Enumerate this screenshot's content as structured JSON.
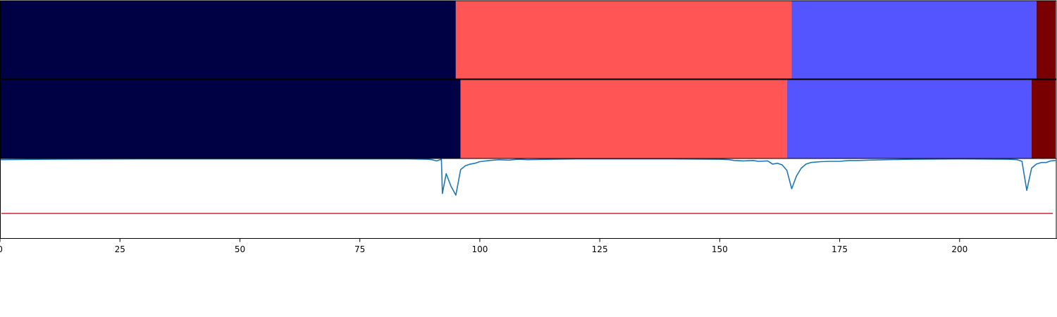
{
  "chart_data": [
    {
      "type": "bar",
      "orientation": "horizontal-segments",
      "panel": "top",
      "segments": [
        {
          "start": 0,
          "end": 95,
          "color": "#000045"
        },
        {
          "start": 95,
          "end": 165,
          "color": "#ff5555"
        },
        {
          "start": 165,
          "end": 216,
          "color": "#5555ff"
        },
        {
          "start": 216,
          "end": 220,
          "color": "#780000"
        }
      ]
    },
    {
      "type": "bar",
      "orientation": "horizontal-segments",
      "panel": "middle",
      "segments": [
        {
          "start": 0,
          "end": 96,
          "color": "#000045"
        },
        {
          "start": 96,
          "end": 164,
          "color": "#ff5555"
        },
        {
          "start": 164,
          "end": 215,
          "color": "#5555ff"
        },
        {
          "start": 215,
          "end": 220,
          "color": "#780000"
        }
      ]
    },
    {
      "type": "line",
      "panel": "bottom",
      "xlim": [
        0,
        220
      ],
      "ylim": [
        0,
        1
      ],
      "x_ticks": [
        0,
        25,
        50,
        75,
        100,
        125,
        150,
        175,
        200
      ],
      "threshold": {
        "value": 0.31,
        "color": "#d62728"
      },
      "series": [
        {
          "color": "#1f77b4",
          "points": [
            [
              0,
              0.985
            ],
            [
              10,
              0.99
            ],
            [
              30,
              0.995
            ],
            [
              60,
              0.995
            ],
            [
              85,
              0.995
            ],
            [
              89,
              0.99
            ],
            [
              90,
              0.985
            ],
            [
              91,
              0.97
            ],
            [
              92,
              0.99
            ],
            [
              92.2,
              0.56
            ],
            [
              93,
              0.81
            ],
            [
              94,
              0.65
            ],
            [
              95,
              0.54
            ],
            [
              96,
              0.86
            ],
            [
              97,
              0.91
            ],
            [
              98,
              0.93
            ],
            [
              99,
              0.94
            ],
            [
              100,
              0.96
            ],
            [
              102,
              0.975
            ],
            [
              104,
              0.985
            ],
            [
              106,
              0.98
            ],
            [
              108,
              0.99
            ],
            [
              110,
              0.985
            ],
            [
              115,
              0.99
            ],
            [
              120,
              0.995
            ],
            [
              130,
              0.995
            ],
            [
              140,
              0.995
            ],
            [
              150,
              0.99
            ],
            [
              152,
              0.985
            ],
            [
              153,
              0.975
            ],
            [
              155,
              0.97
            ],
            [
              157,
              0.975
            ],
            [
              158,
              0.965
            ],
            [
              160,
              0.97
            ],
            [
              161,
              0.93
            ],
            [
              162,
              0.94
            ],
            [
              163,
              0.92
            ],
            [
              164,
              0.85
            ],
            [
              165,
              0.62
            ],
            [
              166,
              0.78
            ],
            [
              167,
              0.88
            ],
            [
              168,
              0.93
            ],
            [
              169,
              0.95
            ],
            [
              171,
              0.96
            ],
            [
              173,
              0.965
            ],
            [
              175,
              0.965
            ],
            [
              177,
              0.975
            ],
            [
              179,
              0.975
            ],
            [
              181,
              0.98
            ],
            [
              185,
              0.985
            ],
            [
              190,
              0.99
            ],
            [
              200,
              0.995
            ],
            [
              210,
              0.99
            ],
            [
              212,
              0.985
            ],
            [
              213,
              0.965
            ],
            [
              214,
              0.6
            ],
            [
              215,
              0.88
            ],
            [
              216,
              0.93
            ],
            [
              217,
              0.95
            ],
            [
              218,
              0.95
            ],
            [
              219,
              0.97
            ],
            [
              220,
              0.975
            ]
          ]
        }
      ]
    }
  ]
}
